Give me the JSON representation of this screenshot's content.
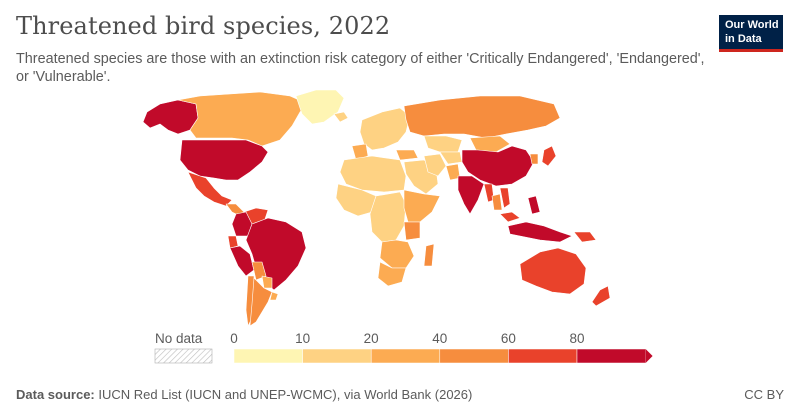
{
  "title": "Threatened bird species, 2022",
  "subtitle": "Threatened species are those with an extinction risk category of either 'Critically Endangered', 'Endangered', or 'Vulnerable'.",
  "logo": {
    "line1": "Our World",
    "line2": "in Data"
  },
  "legend": {
    "no_data_label": "No data",
    "ticks": [
      "0",
      "10",
      "20",
      "40",
      "60",
      "80"
    ],
    "colors": [
      "#fef5b3",
      "#fed283",
      "#fcab52",
      "#f68d3e",
      "#e9422b",
      "#c10a2a"
    ],
    "no_data_color": "#d9d9d9"
  },
  "footer": {
    "source_label": "Data source:",
    "source_text": "IUCN Red List (IUCN and UNEP-WCMC), via World Bank (2026)",
    "license": "CC BY"
  },
  "map_data": {
    "type": "choropleth",
    "regions": [
      {
        "name": "Canada",
        "bin": 2
      },
      {
        "name": "Alaska",
        "bin": 5
      },
      {
        "name": "Greenland",
        "bin": 0
      },
      {
        "name": "United States",
        "bin": 5
      },
      {
        "name": "Mexico",
        "bin": 4
      },
      {
        "name": "Central America",
        "bin": 3
      },
      {
        "name": "Colombia",
        "bin": 5
      },
      {
        "name": "Venezuela",
        "bin": 4
      },
      {
        "name": "Ecuador",
        "bin": 4
      },
      {
        "name": "Peru",
        "bin": 5
      },
      {
        "name": "Brazil",
        "bin": 5
      },
      {
        "name": "Bolivia",
        "bin": 3
      },
      {
        "name": "Paraguay",
        "bin": 2
      },
      {
        "name": "Argentina",
        "bin": 3
      },
      {
        "name": "Chile",
        "bin": 3
      },
      {
        "name": "Uruguay",
        "bin": 2
      },
      {
        "name": "Iceland",
        "bin": 1
      },
      {
        "name": "Europe",
        "bin": 1
      },
      {
        "name": "Spain",
        "bin": 2
      },
      {
        "name": "Russia",
        "bin": 3
      },
      {
        "name": "Kazakhstan",
        "bin": 1
      },
      {
        "name": "Turkey",
        "bin": 2
      },
      {
        "name": "Middle East",
        "bin": 1
      },
      {
        "name": "Iran",
        "bin": 1
      },
      {
        "name": "Central Asia",
        "bin": 1
      },
      {
        "name": "Mongolia",
        "bin": 2
      },
      {
        "name": "China",
        "bin": 5
      },
      {
        "name": "Korea",
        "bin": 3
      },
      {
        "name": "Japan",
        "bin": 4
      },
      {
        "name": "India",
        "bin": 5
      },
      {
        "name": "Pakistan",
        "bin": 2
      },
      {
        "name": "Myanmar",
        "bin": 4
      },
      {
        "name": "Thailand",
        "bin": 3
      },
      {
        "name": "Vietnam",
        "bin": 4
      },
      {
        "name": "Malaysia",
        "bin": 4
      },
      {
        "name": "Philippines",
        "bin": 5
      },
      {
        "name": "Indonesia",
        "bin": 5
      },
      {
        "name": "Papua New Guinea",
        "bin": 4
      },
      {
        "name": "Australia",
        "bin": 4
      },
      {
        "name": "New Zealand",
        "bin": 4
      },
      {
        "name": "North Africa",
        "bin": 1
      },
      {
        "name": "West Africa",
        "bin": 1
      },
      {
        "name": "Central Africa",
        "bin": 1
      },
      {
        "name": "East Africa",
        "bin": 2
      },
      {
        "name": "Tanzania",
        "bin": 3
      },
      {
        "name": "Southern Africa",
        "bin": 2
      },
      {
        "name": "South Africa",
        "bin": 2
      },
      {
        "name": "Madagascar",
        "bin": 3
      }
    ]
  }
}
